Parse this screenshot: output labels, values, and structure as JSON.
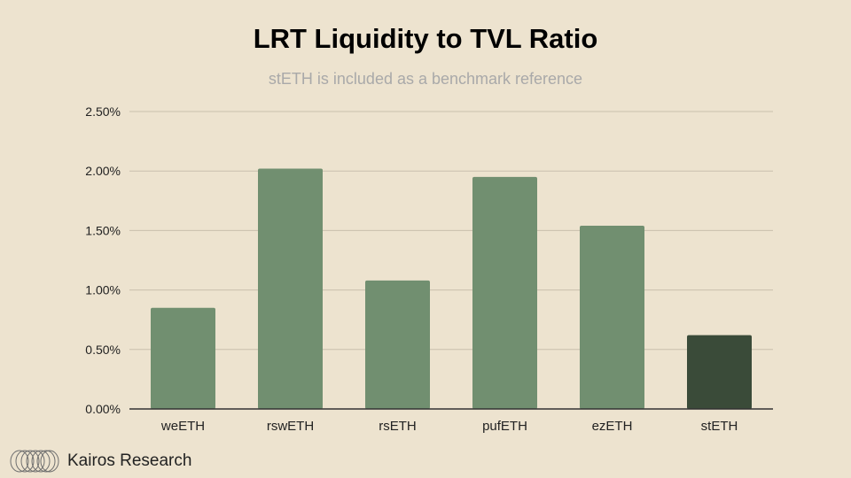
{
  "title": "LRT Liquidity to TVL Ratio",
  "subtitle": "stETH is included as a benchmark reference",
  "brand": {
    "name": "Kairos Research",
    "logo_icon": "kairos-logo-icon"
  },
  "colors": {
    "bar": "#718f70",
    "benchmark_bar": "#3a4b39",
    "grid": "#c9c0ad",
    "axis": "#333333"
  },
  "chart_data": {
    "type": "bar",
    "title": "LRT Liquidity to TVL Ratio",
    "subtitle": "stETH is included as a benchmark reference",
    "xlabel": "",
    "ylabel": "",
    "categories": [
      "weETH",
      "rswETH",
      "rsETH",
      "pufETH",
      "ezETH",
      "stETH"
    ],
    "values": [
      0.85,
      2.02,
      1.08,
      1.95,
      1.54,
      0.62
    ],
    "unit": "%",
    "ylim": [
      0,
      2.5
    ],
    "yticks": [
      0,
      0.5,
      1.0,
      1.5,
      2.0,
      2.5
    ],
    "ytick_labels": [
      "0.00%",
      "0.50%",
      "1.00%",
      "1.50%",
      "2.00%",
      "2.50%"
    ],
    "benchmark_category": "stETH",
    "grid": true,
    "legend": "none"
  }
}
